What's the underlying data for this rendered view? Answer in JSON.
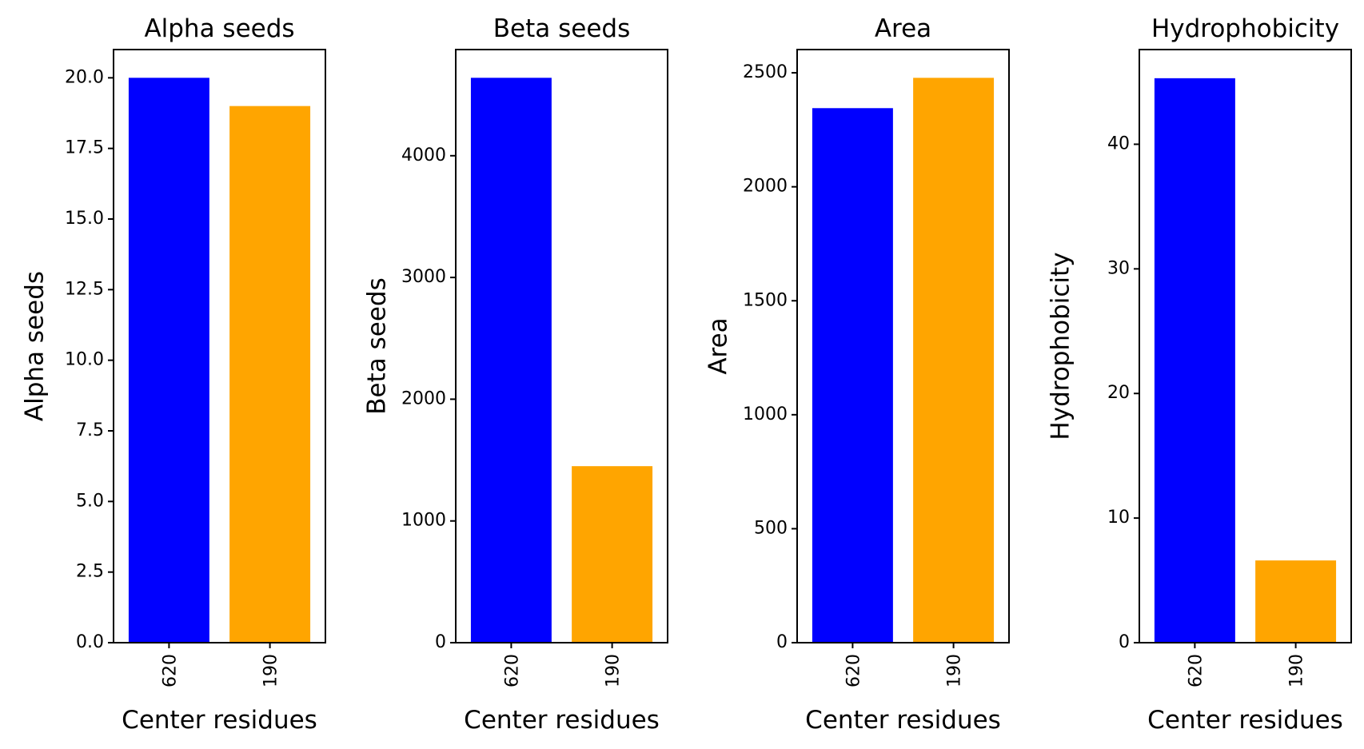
{
  "chart_data": [
    {
      "type": "bar",
      "title": "Alpha seeds",
      "xlabel": "Center residues",
      "ylabel": "Alpha seeds",
      "categories": [
        "620",
        "190"
      ],
      "values": [
        20,
        19
      ],
      "colors": [
        "#0000ff",
        "#ffa500"
      ],
      "ylim": [
        0,
        21
      ],
      "yticks": [
        0,
        2.5,
        5,
        7.5,
        10,
        12.5,
        15,
        17.5,
        20
      ],
      "ytick_labels": [
        "0.0",
        "2.5",
        "5.0",
        "7.5",
        "10.0",
        "12.5",
        "15.0",
        "17.5",
        "20.0"
      ],
      "grid": false
    },
    {
      "type": "bar",
      "title": "Beta seeds",
      "xlabel": "Center residues",
      "ylabel": "Beta seeds",
      "categories": [
        "620",
        "190"
      ],
      "values": [
        4640,
        1450
      ],
      "colors": [
        "#0000ff",
        "#ffa500"
      ],
      "ylim": [
        0,
        4872
      ],
      "yticks": [
        0,
        1000,
        2000,
        3000,
        4000
      ],
      "ytick_labels": [
        "0",
        "1000",
        "2000",
        "3000",
        "4000"
      ],
      "grid": false
    },
    {
      "type": "bar",
      "title": "Area",
      "xlabel": "Center residues",
      "ylabel": "Area",
      "categories": [
        "620",
        "190"
      ],
      "values": [
        2345,
        2478
      ],
      "colors": [
        "#0000ff",
        "#ffa500"
      ],
      "ylim": [
        0,
        2602
      ],
      "yticks": [
        0,
        500,
        1000,
        1500,
        2000,
        2500
      ],
      "ytick_labels": [
        "0",
        "500",
        "1000",
        "1500",
        "2000",
        "2500"
      ],
      "grid": false
    },
    {
      "type": "bar",
      "title": "Hydrophobicity",
      "xlabel": "Center residues",
      "ylabel": "Hydrophobicity",
      "categories": [
        "620",
        "190"
      ],
      "values": [
        45.3,
        6.6
      ],
      "colors": [
        "#0000ff",
        "#ffa500"
      ],
      "ylim": [
        0,
        47.6
      ],
      "yticks": [
        0,
        10,
        20,
        30,
        40
      ],
      "ytick_labels": [
        "0",
        "10",
        "20",
        "30",
        "40"
      ],
      "grid": false
    }
  ]
}
